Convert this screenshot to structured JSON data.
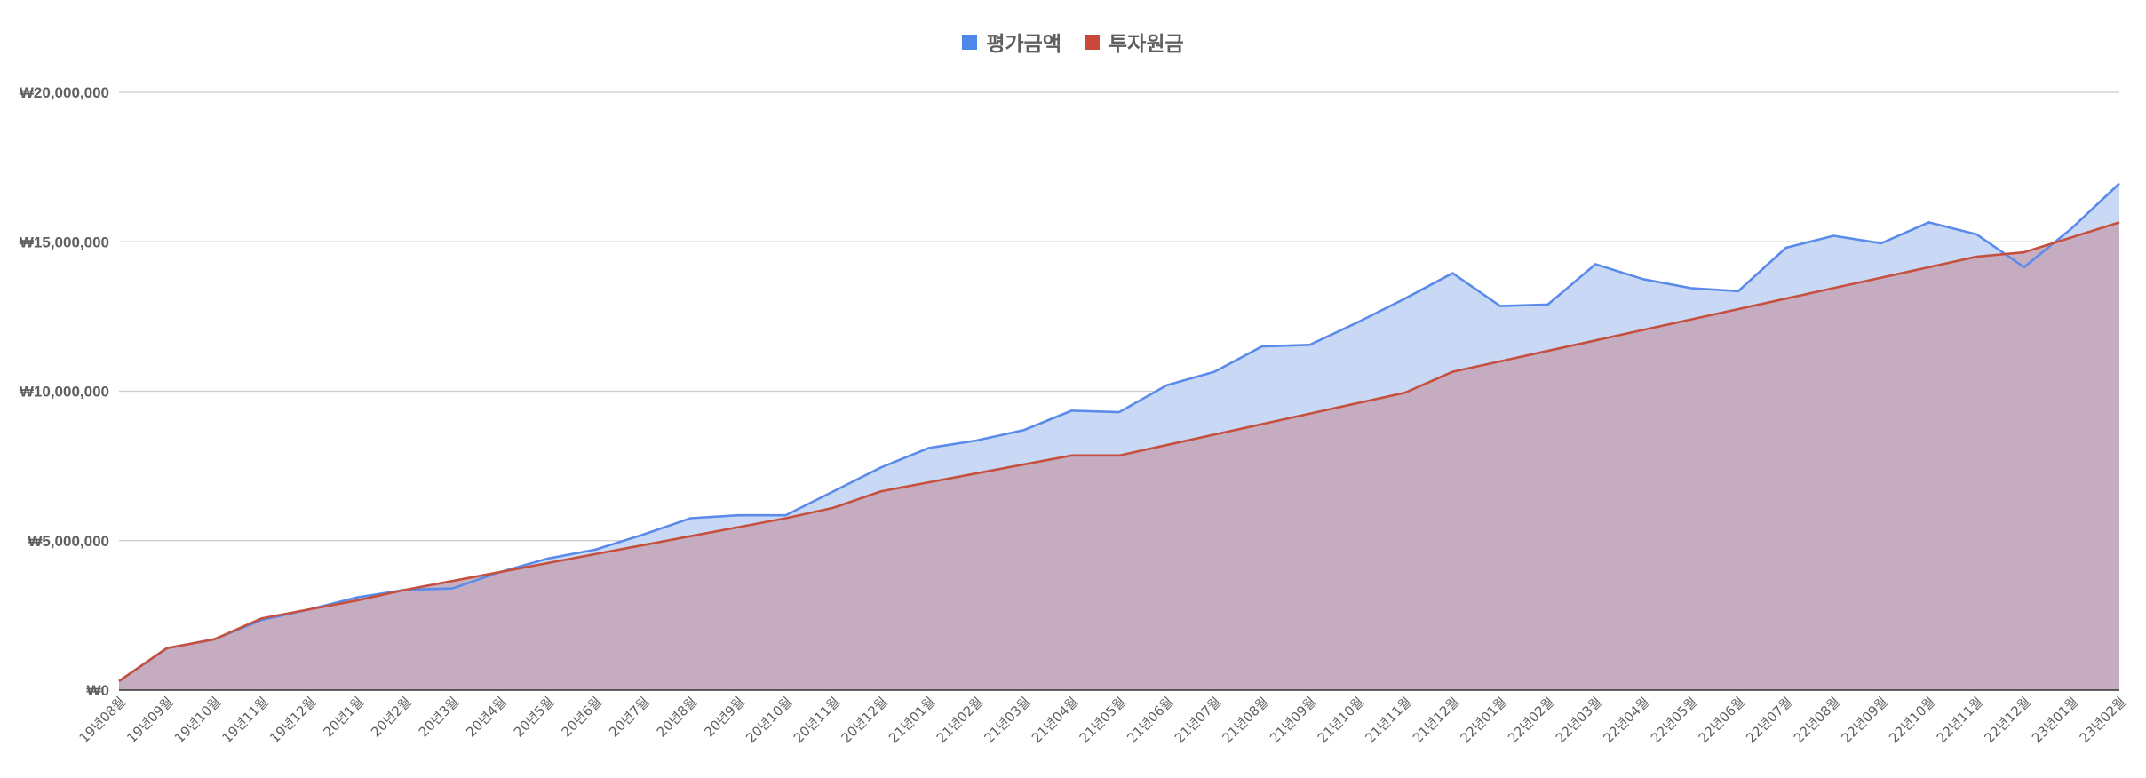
{
  "chart_data": {
    "type": "area",
    "title": "",
    "xlabel": "",
    "ylabel": "",
    "ylim": [
      0,
      20000000
    ],
    "yticks": [
      "₩0",
      "₩5,000,000",
      "₩10,000,000",
      "₩15,000,000",
      "₩20,000,000"
    ],
    "ytick_values": [
      0,
      5000000,
      10000000,
      15000000,
      20000000
    ],
    "legend_position": "top-center",
    "grid": true,
    "categories": [
      "19년08월",
      "19년09월",
      "19년10월",
      "19년11월",
      "19년12월",
      "20년1월",
      "20년2월",
      "20년3월",
      "20년4월",
      "20년5월",
      "20년6월",
      "20년7월",
      "20년8월",
      "20년9월",
      "20년10월",
      "20년11월",
      "20년12월",
      "21년01월",
      "21년02월",
      "21년03월",
      "21년04월",
      "21년05월",
      "21년06월",
      "21년07월",
      "21년08월",
      "21년09월",
      "21년10월",
      "21년11월",
      "21년12월",
      "22년01월",
      "22년02월",
      "22년03월",
      "22년04월",
      "22년05월",
      "22년06월",
      "22년07월",
      "22년08월",
      "22년09월",
      "22년10월",
      "22년11월",
      "22년12월",
      "23년01월",
      "23년02월"
    ],
    "series": [
      {
        "name": "평가금액",
        "color": "#5b8bea",
        "fill": "#c9d8f5",
        "values": [
          300000,
          1400000,
          1700000,
          2350000,
          2700000,
          3100000,
          3350000,
          3400000,
          3950000,
          4400000,
          4700000,
          5200000,
          5750000,
          5850000,
          5850000,
          6650000,
          7450000,
          8100000,
          8350000,
          8700000,
          9350000,
          9300000,
          10200000,
          10650000,
          11500000,
          11550000,
          12300000,
          13100000,
          13950000,
          12850000,
          12900000,
          14250000,
          13750000,
          13450000,
          13350000,
          14800000,
          15200000,
          14950000,
          15650000,
          15250000,
          14150000,
          15450000,
          16950000
        ]
      },
      {
        "name": "투자원금",
        "color": "#c6503e",
        "fill": "#c5aabe",
        "values": [
          300000,
          1400000,
          1700000,
          2400000,
          2700000,
          3000000,
          3350000,
          3650000,
          3950000,
          4250000,
          4550000,
          4850000,
          5150000,
          5450000,
          5750000,
          6100000,
          6650000,
          6950000,
          7250000,
          7550000,
          7850000,
          7850000,
          8200000,
          8550000,
          8900000,
          9250000,
          9600000,
          9950000,
          10650000,
          11000000,
          11350000,
          11700000,
          12050000,
          12400000,
          12750000,
          13100000,
          13450000,
          13800000,
          14150000,
          14500000,
          14650000,
          15150000,
          15650000
        ]
      }
    ]
  }
}
